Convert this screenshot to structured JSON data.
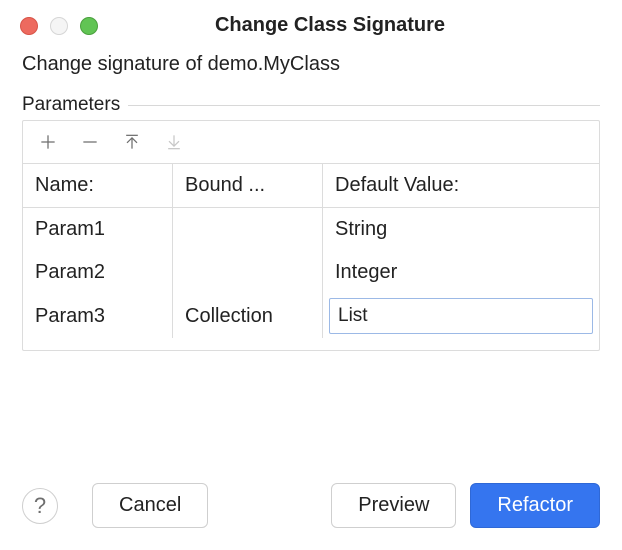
{
  "window": {
    "title": "Change Class Signature"
  },
  "subtitle": "Change signature of demo.MyClass",
  "section": {
    "label": "Parameters"
  },
  "table": {
    "columns": {
      "name": "Name:",
      "bound": "Bound ...",
      "default": "Default Value:"
    },
    "rows": [
      {
        "name": "Param1",
        "bound": "",
        "default": "String",
        "editing": false
      },
      {
        "name": "Param2",
        "bound": "",
        "default": "Integer",
        "editing": false
      },
      {
        "name": "Param3",
        "bound": "Collection",
        "default": "List",
        "editing": true
      }
    ]
  },
  "buttons": {
    "help": "?",
    "cancel": "Cancel",
    "preview": "Preview",
    "refactor": "Refactor"
  },
  "colors": {
    "primary": "#3575ef",
    "border": "#dcdcdc",
    "text": "#222222",
    "icon": "#6e6e6e",
    "icon_disabled": "#c7c7c7",
    "editing_border": "#9cb9e6"
  }
}
